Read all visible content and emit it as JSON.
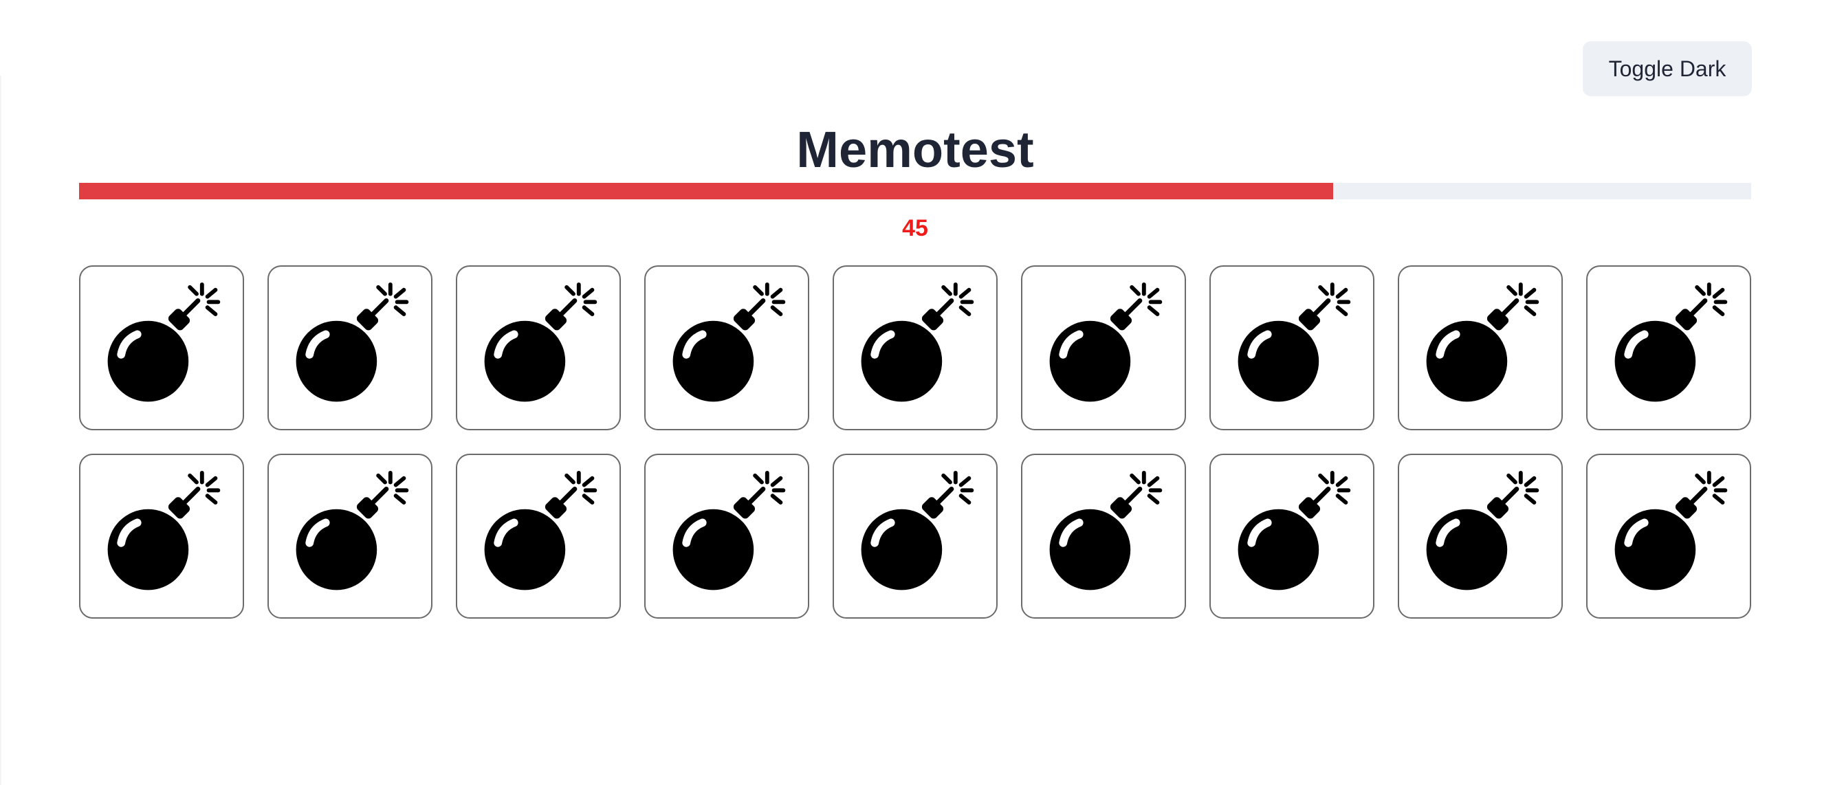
{
  "header": {
    "toggle_label": "Toggle Dark",
    "title": "Memotest"
  },
  "timer": {
    "value": "45",
    "progress": 0.75,
    "bar_color": "#e03e43",
    "text_color": "#ef1c1c"
  },
  "board": {
    "rows": 2,
    "columns": 9,
    "cards": [
      {
        "icon": "bomb-icon"
      },
      {
        "icon": "bomb-icon"
      },
      {
        "icon": "bomb-icon"
      },
      {
        "icon": "bomb-icon"
      },
      {
        "icon": "bomb-icon"
      },
      {
        "icon": "bomb-icon"
      },
      {
        "icon": "bomb-icon"
      },
      {
        "icon": "bomb-icon"
      },
      {
        "icon": "bomb-icon"
      },
      {
        "icon": "bomb-icon"
      },
      {
        "icon": "bomb-icon"
      },
      {
        "icon": "bomb-icon"
      },
      {
        "icon": "bomb-icon"
      },
      {
        "icon": "bomb-icon"
      },
      {
        "icon": "bomb-icon"
      },
      {
        "icon": "bomb-icon"
      },
      {
        "icon": "bomb-icon"
      },
      {
        "icon": "bomb-icon"
      }
    ]
  }
}
